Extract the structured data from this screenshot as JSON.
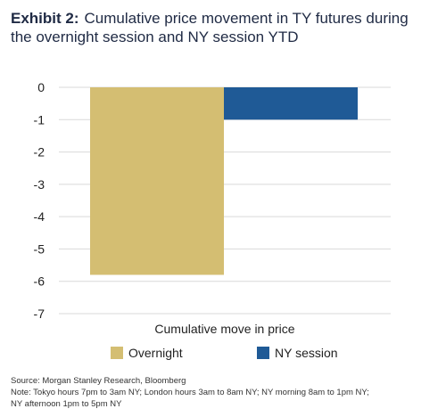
{
  "header": {
    "exhibit_label": "Exhibit 2:",
    "title_text": "Cumulative price movement in TY futures during the overnight session and NY session YTD"
  },
  "chart_data": {
    "type": "bar",
    "categories": [
      "Cumulative move in price"
    ],
    "series": [
      {
        "name": "Overnight",
        "values": [
          -5.8
        ],
        "color": "#d4be72"
      },
      {
        "name": "NY session",
        "values": [
          -1.0
        ],
        "color": "#1f5a96"
      }
    ],
    "xlabel": "Cumulative move in price",
    "ylabel": "",
    "ylim": [
      -7,
      0
    ],
    "yticks": [
      0,
      -1,
      -2,
      -3,
      -4,
      -5,
      -6,
      -7
    ],
    "ytick_labels": [
      "0",
      "-1",
      "-2",
      "-3",
      "-4",
      "-5",
      "-6",
      "-7"
    ],
    "grid": true,
    "legend_position": "bottom"
  },
  "footer": {
    "source": "Source: Morgan Stanley Research, Bloomberg",
    "note_line1": "Note: Tokyo hours 7pm to 3am NY; London hours 3am to 8am NY; NY morning 8am to 1pm NY;",
    "note_line2": "NY afternoon 1pm to 5pm NY"
  }
}
